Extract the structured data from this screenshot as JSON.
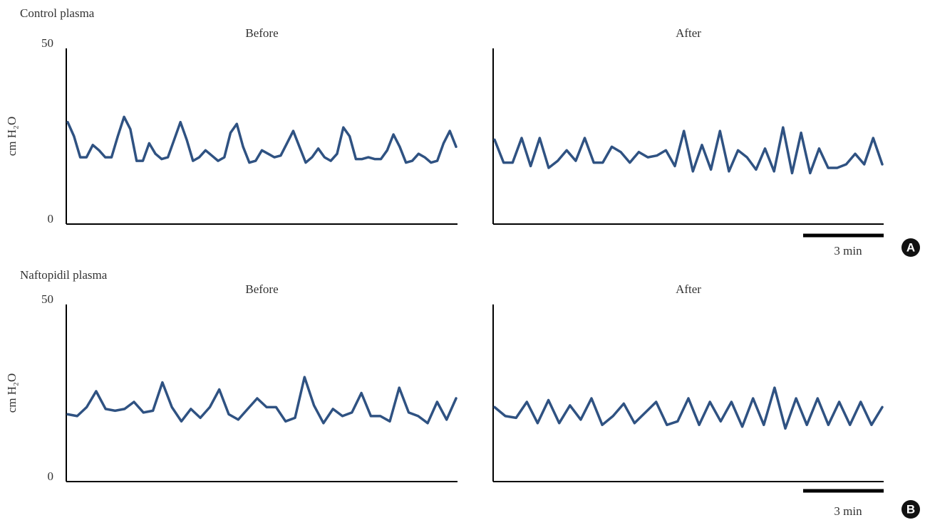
{
  "figure": {
    "panels": [
      {
        "label": "A",
        "title": "Control plasma",
        "scale_bar": "3 min"
      },
      {
        "label": "B",
        "title": "Naftopidil plasma",
        "scale_bar": "3 min"
      }
    ]
  },
  "chart_data": [
    {
      "type": "line",
      "title": "Before",
      "ylabel": "cm H₂O",
      "ylim": [
        0,
        50
      ],
      "yticks": [
        0,
        50
      ],
      "color": "#2f5282",
      "values": [
        29,
        25,
        19,
        19,
        22.5,
        21,
        19,
        19,
        25,
        30.5,
        27,
        18,
        18,
        23,
        20,
        18.5,
        19,
        24,
        29,
        24,
        18,
        19,
        21,
        19.5,
        18,
        19,
        26,
        28.5,
        22,
        17.5,
        18,
        21,
        20,
        19,
        19.5,
        23,
        26.5,
        22,
        17.5,
        19,
        21.5,
        19,
        18,
        20,
        27.5,
        25,
        18.5,
        18.5,
        19,
        18.5,
        18.5,
        21,
        25.5,
        22,
        17.5,
        18,
        20,
        19,
        17.5,
        18,
        23,
        26.5,
        22
      ]
    },
    {
      "type": "line",
      "title": "After",
      "ylim": [
        0,
        50
      ],
      "color": "#2f5282",
      "values": [
        24,
        17.5,
        17.5,
        24.5,
        16.5,
        24.5,
        16,
        18,
        21,
        18,
        24.5,
        17.5,
        17.5,
        22,
        20.5,
        17.5,
        20.5,
        19,
        19.5,
        21,
        16.5,
        26.5,
        15,
        22.5,
        15.5,
        26.5,
        15,
        21,
        19,
        15.5,
        21.5,
        15,
        27.5,
        14.5,
        26,
        14.5,
        21.5,
        16,
        16,
        17,
        20,
        17,
        24.5,
        17
      ]
    },
    {
      "type": "line",
      "title": "Before",
      "ylabel": "cm H₂O",
      "ylim": [
        0,
        50
      ],
      "yticks": [
        0,
        50
      ],
      "color": "#2f5282",
      "values": [
        19,
        18.5,
        21,
        25.5,
        20.5,
        20,
        20.5,
        22.5,
        19.5,
        20,
        28,
        21,
        17,
        20.5,
        18,
        21,
        26,
        19,
        17.5,
        20.5,
        23.5,
        21,
        21,
        17,
        18,
        29.5,
        21.5,
        16.5,
        20.5,
        18.5,
        19.5,
        25,
        18.5,
        18.5,
        17,
        26.5,
        19.5,
        18.5,
        16.5,
        22.5,
        17.5,
        23.5
      ]
    },
    {
      "type": "line",
      "title": "After",
      "ylim": [
        0,
        50
      ],
      "color": "#2f5282",
      "values": [
        21,
        18.5,
        18,
        22.5,
        16.5,
        23,
        16.5,
        21.5,
        17.5,
        23.5,
        16,
        18.5,
        22,
        16.5,
        19.5,
        22.5,
        16,
        17,
        23.5,
        16,
        22.5,
        17,
        22.5,
        15.5,
        23.5,
        16,
        26.5,
        15,
        23.5,
        16,
        23.5,
        16,
        22.5,
        16,
        22.5,
        16,
        21
      ]
    }
  ]
}
